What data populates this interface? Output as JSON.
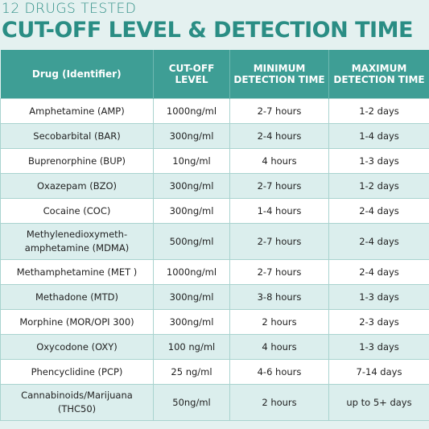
{
  "header": {
    "kicker": "12 DRUGS TESTED",
    "title": "CUT-OFF LEVEL & DETECTION TIME"
  },
  "table": {
    "columns": [
      "Drug (Identifier)",
      "CUT-OFF\nLEVEL",
      "MINIMUM\nDETECTION TIME",
      "MAXIMUM\nDETECTION TIME"
    ],
    "rows": [
      [
        "Amphetamine (AMP)",
        "1000ng/ml",
        "2-7 hours",
        "1-2 days"
      ],
      [
        "Secobarbital (BAR)",
        "300ng/ml",
        "2-4 hours",
        "1-4 days"
      ],
      [
        "Buprenorphine (BUP)",
        "10ng/ml",
        "4 hours",
        "1-3 days"
      ],
      [
        "Oxazepam (BZO)",
        "300ng/ml",
        "2-7 hours",
        "1-2 days"
      ],
      [
        "Cocaine (COC)",
        "300ng/ml",
        "1-4 hours",
        "2-4 days"
      ],
      [
        "Methylenedioxymeth-\namphetamine (MDMA)",
        "500ng/ml",
        "2-7 hours",
        "2-4 days"
      ],
      [
        "Methamphetamine (MET )",
        "1000ng/ml",
        "2-7 hours",
        "2-4 days"
      ],
      [
        "Methadone (MTD)",
        "300ng/ml",
        "3-8 hours",
        "1-3 days"
      ],
      [
        "Morphine (MOR/OPI 300)",
        "300ng/ml",
        "2 hours",
        "2-3 days"
      ],
      [
        "Oxycodone (OXY)",
        "100 ng/ml",
        "4 hours",
        "1-3 days"
      ],
      [
        "Phencyclidine (PCP)",
        "25 ng/ml",
        "4-6 hours",
        "7-14 days"
      ],
      [
        "Cannabinoids/Marijuana\n(THC50)",
        "50ng/ml",
        "2 hours",
        "up to 5+ days"
      ]
    ]
  }
}
